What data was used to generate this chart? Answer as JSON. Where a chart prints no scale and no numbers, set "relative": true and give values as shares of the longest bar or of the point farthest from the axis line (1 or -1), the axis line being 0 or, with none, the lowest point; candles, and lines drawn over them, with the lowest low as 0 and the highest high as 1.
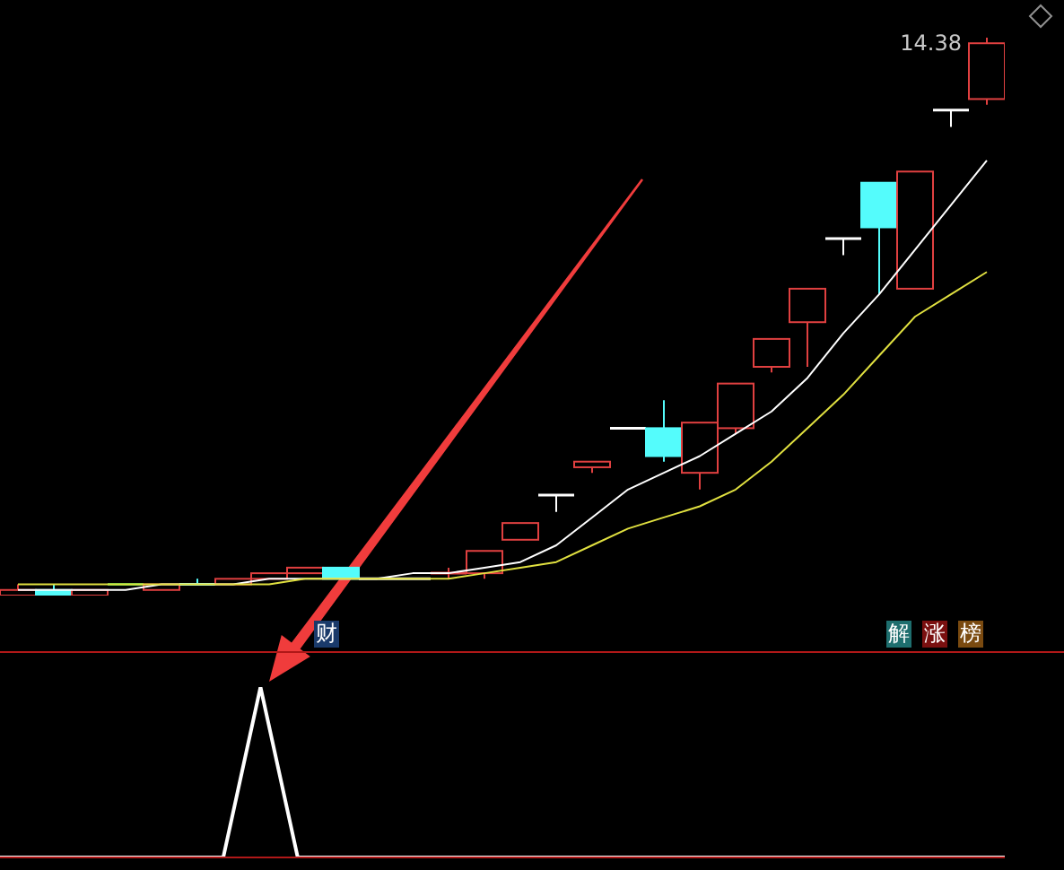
{
  "chart_data": [
    {
      "type": "candlestick",
      "relative": true,
      "categories": [
        null,
        null,
        null,
        null,
        null,
        null,
        null,
        null,
        null,
        null,
        null,
        null,
        null,
        null,
        null,
        null,
        null,
        null,
        null,
        null,
        null,
        null,
        null,
        null,
        null,
        null,
        null,
        null
      ],
      "ohlc": [
        [
          0.0,
          0.02,
          0.0,
          0.01
        ],
        [
          0.01,
          0.02,
          0.0,
          0.0
        ],
        [
          0.0,
          0.01,
          0.0,
          0.01
        ],
        [
          0.02,
          0.02,
          0.02,
          0.02
        ],
        [
          0.01,
          0.02,
          0.01,
          0.02
        ],
        [
          0.02,
          0.03,
          0.02,
          0.02
        ],
        [
          0.02,
          0.03,
          0.02,
          0.03
        ],
        [
          0.03,
          0.04,
          0.03,
          0.04
        ],
        [
          0.04,
          0.05,
          0.04,
          0.05
        ],
        [
          0.05,
          0.05,
          0.03,
          0.03
        ],
        [
          0.03,
          0.03,
          0.03,
          0.03
        ],
        [
          0.03,
          0.03,
          0.03,
          0.03
        ],
        [
          0.04,
          0.05,
          0.03,
          0.04
        ],
        [
          0.04,
          0.08,
          0.03,
          0.08
        ],
        [
          0.1,
          0.13,
          0.1,
          0.13
        ],
        [
          0.18,
          0.18,
          0.15,
          0.18
        ],
        [
          0.23,
          0.24,
          0.22,
          0.24
        ],
        [
          0.3,
          0.3,
          0.3,
          0.3
        ],
        [
          0.3,
          0.35,
          0.24,
          0.25
        ],
        [
          0.22,
          0.31,
          0.19,
          0.31
        ],
        [
          0.3,
          0.38,
          0.29,
          0.38
        ],
        [
          0.41,
          0.46,
          0.4,
          0.46
        ],
        [
          0.49,
          0.55,
          0.41,
          0.55
        ],
        [
          0.64,
          0.64,
          0.61,
          0.64
        ],
        [
          0.74,
          0.74,
          0.54,
          0.66
        ],
        [
          0.55,
          0.76,
          0.55,
          0.76
        ],
        [
          0.87,
          0.87,
          0.84,
          0.87
        ],
        [
          0.89,
          1.0,
          0.88,
          0.99
        ]
      ],
      "colors": [
        "#e04040",
        "#54fcfc",
        "#e04040",
        "#40c040",
        "#e04040",
        "#54fcfc",
        "#e04040",
        "#e04040",
        "#e04040",
        "#54fcfc",
        "#ffffff",
        "#ffffff",
        "#e04040",
        "#e04040",
        "#e04040",
        "#ffffff",
        "#e04040",
        "#ffffff",
        "#54fcfc",
        "#e04040",
        "#e04040",
        "#e04040",
        "#e04040",
        "#ffffff",
        "#54fcfc",
        "#e04040",
        "#ffffff",
        "#e04040"
      ],
      "series": [
        {
          "type": "line",
          "color": "#ffffff",
          "values": [
            0.01,
            0.01,
            0.01,
            0.01,
            0.02,
            0.02,
            0.02,
            0.03,
            0.03,
            0.03,
            0.03,
            0.04,
            0.04,
            0.05,
            0.06,
            0.09,
            0.14,
            0.19,
            0.22,
            0.25,
            0.29,
            0.33,
            0.39,
            0.47,
            0.54,
            0.62,
            0.7,
            0.78
          ]
        },
        {
          "type": "line",
          "color": "#e0e040",
          "values": [
            0.02,
            0.02,
            0.02,
            0.02,
            0.02,
            0.02,
            0.02,
            0.02,
            0.03,
            0.03,
            0.03,
            0.03,
            0.03,
            0.04,
            0.05,
            0.06,
            0.09,
            0.12,
            0.14,
            0.16,
            0.19,
            0.24,
            0.3,
            0.36,
            0.43,
            0.5,
            0.54,
            0.58
          ]
        }
      ],
      "annotations": [
        "14.38",
        "财",
        "解",
        "涨",
        "榜"
      ]
    },
    {
      "type": "line",
      "relative": true,
      "categories": [
        null,
        null,
        null,
        null,
        null,
        null,
        null,
        null,
        null,
        null,
        null,
        null,
        null,
        null,
        null,
        null,
        null,
        null,
        null,
        null,
        null,
        null,
        null,
        null,
        null,
        null,
        null,
        null
      ],
      "series": [
        {
          "color": "#ffffff",
          "values": [
            0,
            0,
            0,
            0,
            0,
            0,
            0,
            1,
            0,
            0,
            0,
            0,
            0,
            0,
            0,
            0,
            0,
            0,
            0,
            0,
            0,
            0,
            0,
            0,
            0,
            0,
            0,
            0
          ]
        }
      ]
    }
  ]
}
